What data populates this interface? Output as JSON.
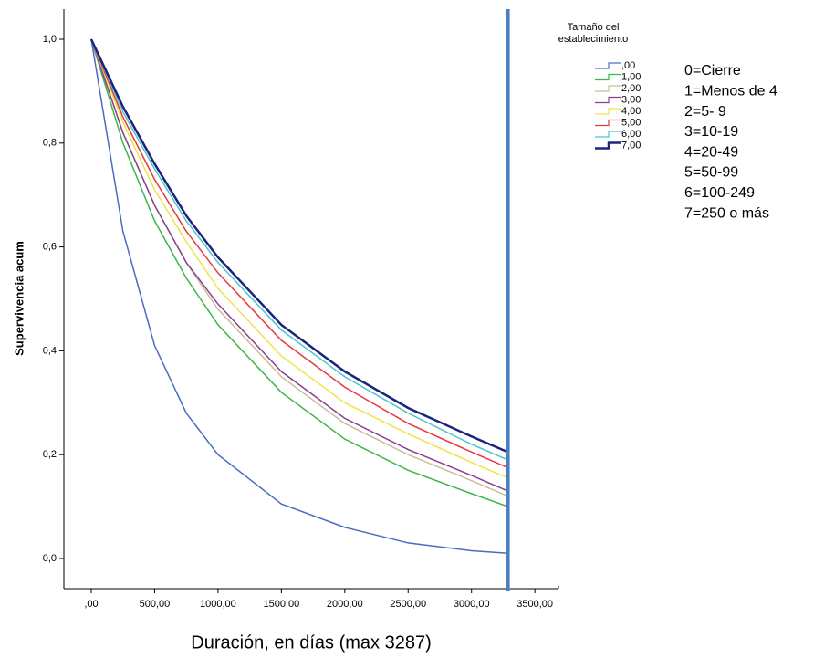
{
  "chart_data": {
    "type": "line",
    "y_label": "Supervivencia acum",
    "x_label": "Duración, en días (max 3287)",
    "x": [
      0,
      250,
      500,
      750,
      1000,
      1500,
      2000,
      2500,
      3000,
      3287
    ],
    "series": [
      {
        "name": ",00",
        "color": "#4a6cc0",
        "values": [
          1,
          0.63,
          0.41,
          0.28,
          0.2,
          0.105,
          0.06,
          0.03,
          0.015,
          0.01
        ]
      },
      {
        "name": "1,00",
        "color": "#3cb54a",
        "values": [
          1,
          0.8,
          0.65,
          0.54,
          0.45,
          0.32,
          0.23,
          0.17,
          0.125,
          0.1
        ]
      },
      {
        "name": "2,00",
        "color": "#c8bf96",
        "values": [
          1,
          0.82,
          0.68,
          0.57,
          0.48,
          0.35,
          0.26,
          0.2,
          0.15,
          0.12
        ]
      },
      {
        "name": "3,00",
        "color": "#8a3f93",
        "values": [
          1,
          0.82,
          0.68,
          0.57,
          0.49,
          0.36,
          0.27,
          0.21,
          0.16,
          0.13
        ]
      },
      {
        "name": "4,00",
        "color": "#f0e34a",
        "values": [
          1,
          0.84,
          0.71,
          0.61,
          0.52,
          0.39,
          0.3,
          0.24,
          0.185,
          0.155
        ]
      },
      {
        "name": "5,00",
        "color": "#e8383d",
        "values": [
          1,
          0.85,
          0.73,
          0.63,
          0.55,
          0.42,
          0.33,
          0.26,
          0.205,
          0.175
        ]
      },
      {
        "name": "6,00",
        "color": "#4fc4c8",
        "values": [
          1,
          0.86,
          0.75,
          0.65,
          0.57,
          0.44,
          0.35,
          0.28,
          0.22,
          0.19
        ]
      },
      {
        "name": "7,00",
        "color": "#1a237e",
        "values": [
          1,
          0.87,
          0.76,
          0.66,
          0.58,
          0.45,
          0.36,
          0.29,
          0.235,
          0.205
        ]
      }
    ],
    "xlim": [
      -216,
      3686
    ],
    "ylim": [
      -0.058,
      1.058
    ],
    "xticks": [
      {
        "value": 0,
        "label": ",00"
      },
      {
        "value": 500,
        "label": "500,00"
      },
      {
        "value": 1000,
        "label": "1000,00"
      },
      {
        "value": 1500,
        "label": "1500,00"
      },
      {
        "value": 2000,
        "label": "2000,00"
      },
      {
        "value": 2500,
        "label": "2500,00"
      },
      {
        "value": 3000,
        "label": "3000,00"
      },
      {
        "value": 3500,
        "label": "3500,00"
      }
    ],
    "yticks": [
      {
        "value": 0,
        "label": "0,0"
      },
      {
        "value": 0.2,
        "label": "0,2"
      },
      {
        "value": 0.4,
        "label": "0,4"
      },
      {
        "value": 0.6,
        "label": "0,6"
      },
      {
        "value": 0.8,
        "label": "0,8"
      },
      {
        "value": 1,
        "label": "1,0"
      }
    ],
    "reference_line": {
      "x": 3287,
      "color": "#4a7fc1"
    },
    "legend_title": [
      "Tamaño del",
      "establecimiento"
    ],
    "legend_notes": [
      "0=Cierre",
      "1=Menos de 4",
      "2=5- 9",
      "3=10-19",
      "4=20-49",
      "5=50-99",
      "6=100-249",
      "7=250 o más"
    ]
  }
}
